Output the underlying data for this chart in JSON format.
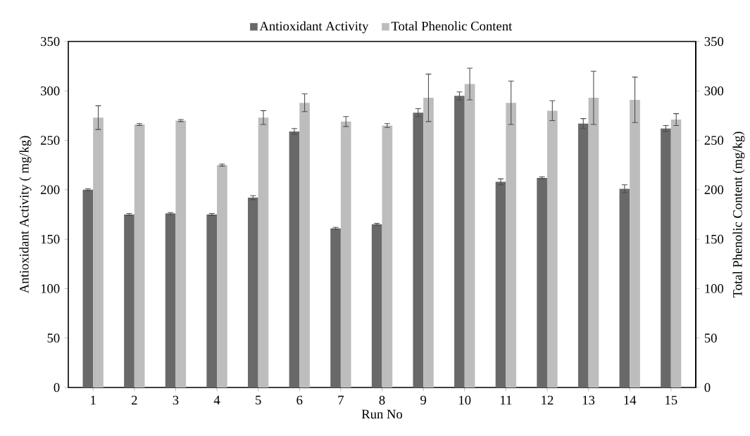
{
  "chart_data": {
    "type": "bar",
    "xlabel": "Run No",
    "ylabel": "Antioxidant Activity ( mg/kg)",
    "y2label": "Total Phenolic Content (mg/kg)",
    "categories": [
      "1",
      "2",
      "3",
      "4",
      "5",
      "6",
      "7",
      "8",
      "9",
      "10",
      "11",
      "12",
      "13",
      "14",
      "15"
    ],
    "series": [
      {
        "name": "Antioxidant Activity",
        "color": "#696969",
        "values": [
          200,
          175,
          176,
          175,
          192,
          259,
          161,
          165,
          278,
          295,
          208,
          212,
          267,
          201,
          262
        ],
        "errors": [
          1,
          1,
          1,
          1,
          2,
          3,
          1,
          1,
          4,
          4,
          3,
          1,
          5,
          4,
          3
        ]
      },
      {
        "name": "Total Phenolic Content",
        "color": "#bdbdbd",
        "axis": "y2",
        "values": [
          273,
          266,
          270,
          225,
          273,
          288,
          269,
          265,
          293,
          307,
          288,
          280,
          293,
          291,
          271
        ],
        "errors": [
          12,
          1,
          1,
          1,
          7,
          9,
          5,
          2,
          24,
          16,
          22,
          10,
          27,
          23,
          6
        ]
      }
    ],
    "ylim": [
      0,
      350
    ],
    "yticks": [
      0,
      50,
      100,
      150,
      200,
      250,
      300,
      350
    ],
    "y2lim": [
      0,
      350
    ],
    "y2ticks": [
      0,
      50,
      100,
      150,
      200,
      250,
      300,
      350
    ],
    "legend": "top",
    "grid": false
  }
}
